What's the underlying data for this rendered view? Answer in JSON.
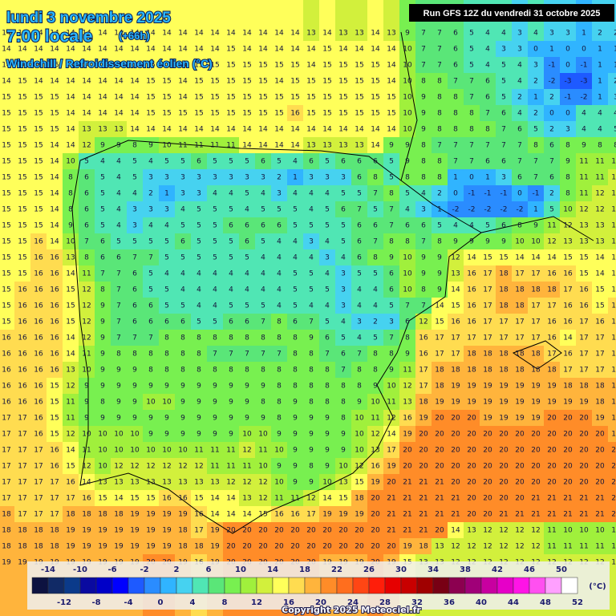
{
  "header": {
    "date": "lundi 3 novembre 2025",
    "time": "7:00 locale",
    "offset": "(+66h)",
    "subtitle": "Windchill / Refroidissement éolien (°C)",
    "run_info": "Run GFS 12Z du vendredi 31 octobre 2025"
  },
  "grid": {
    "rows": [
      [
        14,
        14,
        14,
        14,
        14,
        14,
        14,
        14,
        14,
        14,
        14,
        14,
        14,
        14,
        14,
        14,
        14,
        14,
        14,
        13,
        14,
        13,
        13,
        14,
        13,
        9,
        7,
        7,
        6,
        5,
        4,
        4,
        3,
        4,
        3,
        3,
        1,
        2,
        2
      ],
      [
        14,
        14,
        14,
        14,
        14,
        14,
        14,
        14,
        14,
        14,
        14,
        14,
        14,
        14,
        15,
        14,
        14,
        14,
        14,
        14,
        15,
        14,
        14,
        14,
        14,
        10,
        7,
        7,
        6,
        5,
        4,
        3,
        3,
        0,
        1,
        0,
        0,
        1,
        1
      ],
      [
        14,
        14,
        14,
        15,
        14,
        14,
        14,
        15,
        14,
        15,
        15,
        14,
        15,
        15,
        15,
        15,
        15,
        15,
        15,
        14,
        15,
        15,
        15,
        15,
        14,
        10,
        7,
        7,
        6,
        5,
        4,
        5,
        4,
        3,
        -1,
        0,
        -1,
        1,
        1
      ],
      [
        14,
        15,
        14,
        14,
        14,
        14,
        14,
        14,
        14,
        15,
        15,
        14,
        15,
        15,
        15,
        15,
        15,
        14,
        15,
        15,
        15,
        15,
        15,
        15,
        14,
        10,
        8,
        8,
        7,
        7,
        6,
        5,
        4,
        2,
        -2,
        -3,
        -3,
        1,
        2
      ],
      [
        15,
        15,
        15,
        15,
        14,
        14,
        14,
        14,
        14,
        15,
        15,
        14,
        15,
        15,
        15,
        15,
        15,
        15,
        15,
        15,
        15,
        15,
        15,
        15,
        15,
        10,
        9,
        8,
        8,
        7,
        6,
        5,
        2,
        1,
        2,
        -1,
        -2,
        1,
        3
      ],
      [
        15,
        15,
        15,
        15,
        14,
        14,
        14,
        14,
        14,
        15,
        15,
        15,
        15,
        15,
        15,
        15,
        15,
        15,
        16,
        15,
        15,
        15,
        15,
        15,
        15,
        10,
        9,
        8,
        8,
        8,
        7,
        6,
        4,
        2,
        0,
        0,
        4,
        4,
        4
      ],
      [
        15,
        15,
        15,
        15,
        14,
        13,
        13,
        13,
        14,
        14,
        14,
        14,
        14,
        14,
        14,
        14,
        14,
        14,
        14,
        14,
        14,
        14,
        14,
        14,
        14,
        10,
        9,
        8,
        8,
        8,
        8,
        7,
        6,
        5,
        2,
        3,
        4,
        4,
        5
      ],
      [
        15,
        15,
        15,
        14,
        14,
        12,
        9,
        9,
        8,
        9,
        10,
        11,
        11,
        11,
        11,
        14,
        14,
        14,
        14,
        13,
        13,
        13,
        13,
        14,
        9,
        9,
        8,
        7,
        7,
        7,
        7,
        7,
        7,
        8,
        6,
        8,
        9,
        8,
        8
      ],
      [
        15,
        15,
        15,
        14,
        10,
        5,
        4,
        4,
        5,
        4,
        5,
        5,
        6,
        5,
        5,
        5,
        6,
        5,
        4,
        6,
        5,
        6,
        6,
        6,
        5,
        9,
        8,
        8,
        7,
        7,
        6,
        6,
        7,
        7,
        7,
        9,
        11,
        11,
        11
      ],
      [
        15,
        15,
        15,
        14,
        8,
        6,
        5,
        4,
        5,
        3,
        3,
        3,
        3,
        3,
        3,
        3,
        3,
        2,
        1,
        3,
        3,
        3,
        6,
        8,
        5,
        8,
        8,
        8,
        1,
        0,
        1,
        3,
        6,
        7,
        6,
        8,
        11,
        11,
        12
      ],
      [
        15,
        15,
        15,
        14,
        8,
        6,
        5,
        4,
        4,
        2,
        1,
        3,
        3,
        4,
        4,
        5,
        4,
        3,
        4,
        4,
        4,
        5,
        5,
        7,
        8,
        5,
        4,
        2,
        0,
        -1,
        -1,
        -1,
        0,
        -1,
        2,
        8,
        11,
        12,
        12
      ],
      [
        15,
        15,
        15,
        14,
        8,
        6,
        5,
        4,
        3,
        3,
        3,
        4,
        5,
        5,
        5,
        4,
        5,
        5,
        5,
        4,
        5,
        6,
        7,
        5,
        7,
        4,
        3,
        1,
        -2,
        -2,
        -2,
        -2,
        -2,
        1,
        5,
        10,
        12,
        12,
        13
      ],
      [
        15,
        15,
        15,
        14,
        9,
        6,
        5,
        4,
        3,
        4,
        4,
        5,
        5,
        5,
        6,
        6,
        6,
        6,
        5,
        5,
        5,
        5,
        6,
        6,
        7,
        6,
        6,
        5,
        4,
        4,
        5,
        6,
        8,
        9,
        11,
        12,
        13,
        13,
        13
      ],
      [
        15,
        15,
        16,
        14,
        10,
        7,
        6,
        5,
        5,
        5,
        5,
        6,
        5,
        5,
        5,
        6,
        5,
        4,
        4,
        3,
        4,
        5,
        6,
        7,
        8,
        8,
        7,
        8,
        9,
        9,
        9,
        9,
        10,
        10,
        12,
        13,
        13,
        13,
        13
      ],
      [
        15,
        15,
        16,
        16,
        13,
        8,
        6,
        6,
        7,
        7,
        5,
        5,
        5,
        5,
        5,
        5,
        4,
        4,
        4,
        4,
        3,
        4,
        6,
        8,
        9,
        10,
        9,
        9,
        12,
        14,
        15,
        15,
        14,
        14,
        14,
        15,
        15,
        14,
        14
      ],
      [
        15,
        15,
        16,
        16,
        14,
        11,
        7,
        7,
        6,
        5,
        4,
        4,
        4,
        4,
        4,
        4,
        4,
        4,
        5,
        5,
        4,
        3,
        5,
        5,
        6,
        10,
        9,
        9,
        13,
        16,
        17,
        18,
        17,
        17,
        16,
        16,
        15,
        14,
        14
      ],
      [
        15,
        16,
        16,
        16,
        15,
        12,
        8,
        7,
        6,
        5,
        5,
        4,
        4,
        4,
        4,
        4,
        4,
        4,
        5,
        5,
        5,
        3,
        4,
        4,
        6,
        10,
        8,
        9,
        14,
        16,
        17,
        18,
        18,
        18,
        18,
        17,
        16,
        15,
        15
      ],
      [
        15,
        16,
        16,
        16,
        15,
        12,
        9,
        7,
        6,
        6,
        5,
        5,
        4,
        4,
        5,
        5,
        5,
        4,
        5,
        4,
        4,
        3,
        4,
        4,
        5,
        7,
        7,
        14,
        15,
        16,
        17,
        18,
        18,
        17,
        17,
        16,
        16,
        15,
        16
      ],
      [
        15,
        16,
        16,
        16,
        15,
        12,
        9,
        7,
        6,
        6,
        6,
        6,
        5,
        5,
        6,
        6,
        7,
        8,
        6,
        7,
        5,
        4,
        3,
        2,
        3,
        6,
        12,
        15,
        16,
        16,
        17,
        17,
        17,
        17,
        16,
        16,
        17,
        16,
        16
      ],
      [
        16,
        16,
        16,
        16,
        14,
        12,
        9,
        7,
        7,
        7,
        8,
        8,
        8,
        8,
        8,
        8,
        8,
        8,
        8,
        9,
        6,
        5,
        4,
        5,
        7,
        8,
        16,
        17,
        17,
        17,
        17,
        17,
        17,
        17,
        16,
        14,
        17,
        17,
        17
      ],
      [
        16,
        16,
        16,
        16,
        14,
        11,
        9,
        8,
        8,
        8,
        8,
        8,
        8,
        7,
        7,
        7,
        7,
        7,
        8,
        8,
        7,
        6,
        7,
        8,
        8,
        9,
        16,
        17,
        17,
        18,
        18,
        18,
        18,
        18,
        17,
        16,
        17,
        17,
        17
      ],
      [
        16,
        16,
        16,
        16,
        13,
        10,
        9,
        9,
        9,
        8,
        8,
        8,
        8,
        8,
        8,
        8,
        8,
        8,
        8,
        8,
        8,
        7,
        8,
        8,
        9,
        11,
        17,
        18,
        18,
        18,
        18,
        18,
        18,
        18,
        18,
        17,
        17,
        17,
        17
      ],
      [
        16,
        16,
        16,
        15,
        12,
        9,
        9,
        9,
        9,
        9,
        9,
        9,
        9,
        9,
        9,
        9,
        9,
        8,
        8,
        8,
        8,
        8,
        8,
        9,
        10,
        12,
        17,
        18,
        19,
        19,
        19,
        19,
        19,
        19,
        19,
        18,
        18,
        18,
        18
      ],
      [
        16,
        16,
        16,
        15,
        11,
        9,
        8,
        9,
        9,
        10,
        10,
        9,
        9,
        9,
        9,
        9,
        8,
        8,
        9,
        8,
        8,
        8,
        9,
        10,
        11,
        13,
        18,
        19,
        19,
        19,
        19,
        19,
        19,
        19,
        19,
        19,
        19,
        18,
        18
      ],
      [
        17,
        17,
        16,
        15,
        11,
        9,
        9,
        9,
        9,
        9,
        9,
        9,
        9,
        9,
        9,
        9,
        9,
        8,
        9,
        9,
        9,
        8,
        10,
        11,
        12,
        16,
        19,
        20,
        20,
        20,
        19,
        19,
        19,
        19,
        20,
        20,
        20,
        19,
        19
      ],
      [
        17,
        17,
        16,
        15,
        12,
        10,
        10,
        10,
        10,
        9,
        9,
        9,
        9,
        9,
        9,
        10,
        10,
        9,
        9,
        9,
        9,
        9,
        10,
        12,
        14,
        19,
        20,
        20,
        20,
        20,
        20,
        20,
        20,
        20,
        20,
        20,
        20,
        20,
        19
      ],
      [
        17,
        17,
        17,
        16,
        14,
        11,
        10,
        10,
        10,
        10,
        10,
        10,
        11,
        11,
        11,
        12,
        11,
        10,
        9,
        9,
        9,
        9,
        10,
        13,
        17,
        20,
        20,
        20,
        20,
        20,
        20,
        20,
        20,
        20,
        20,
        20,
        20,
        20,
        20
      ],
      [
        17,
        17,
        17,
        16,
        15,
        12,
        10,
        12,
        12,
        12,
        12,
        12,
        12,
        11,
        11,
        11,
        10,
        9,
        9,
        8,
        9,
        10,
        12,
        16,
        19,
        20,
        20,
        20,
        20,
        20,
        20,
        20,
        20,
        20,
        20,
        20,
        20,
        20,
        20
      ],
      [
        17,
        17,
        17,
        17,
        16,
        14,
        13,
        13,
        13,
        13,
        13,
        13,
        13,
        13,
        12,
        12,
        12,
        10,
        9,
        9,
        10,
        13,
        15,
        19,
        20,
        21,
        21,
        21,
        20,
        20,
        20,
        20,
        20,
        20,
        20,
        20,
        20,
        20,
        20
      ],
      [
        17,
        17,
        17,
        17,
        17,
        16,
        15,
        14,
        15,
        15,
        16,
        16,
        15,
        14,
        14,
        13,
        12,
        11,
        11,
        12,
        14,
        15,
        18,
        20,
        21,
        21,
        21,
        21,
        21,
        20,
        20,
        20,
        20,
        21,
        21,
        21,
        21,
        21,
        21
      ],
      [
        18,
        17,
        17,
        17,
        18,
        18,
        18,
        18,
        19,
        19,
        19,
        19,
        16,
        14,
        14,
        14,
        15,
        16,
        16,
        17,
        19,
        19,
        19,
        20,
        21,
        21,
        21,
        21,
        21,
        20,
        20,
        21,
        21,
        21,
        21,
        21,
        21,
        21,
        21
      ],
      [
        18,
        18,
        18,
        18,
        19,
        19,
        19,
        19,
        19,
        19,
        19,
        18,
        17,
        19,
        20,
        20,
        20,
        20,
        20,
        20,
        20,
        20,
        20,
        20,
        21,
        21,
        21,
        20,
        14,
        13,
        12,
        12,
        12,
        12,
        11,
        10,
        10,
        10,
        10
      ],
      [
        18,
        18,
        18,
        18,
        19,
        19,
        19,
        19,
        19,
        19,
        19,
        18,
        18,
        19,
        20,
        20,
        20,
        20,
        20,
        20,
        20,
        20,
        20,
        20,
        20,
        19,
        18,
        13,
        12,
        12,
        12,
        12,
        12,
        12,
        11,
        11,
        11,
        11,
        11
      ],
      [
        19,
        19,
        19,
        19,
        19,
        19,
        19,
        19,
        19,
        20,
        20,
        19,
        16,
        19,
        20,
        20,
        20,
        20,
        20,
        20,
        19,
        19,
        19,
        20,
        19,
        15,
        13,
        13,
        12,
        12,
        12,
        12,
        12,
        12,
        12,
        12,
        12,
        12,
        12
      ]
    ]
  },
  "legend": {
    "top_labels": [
      -14,
      -10,
      -6,
      -2,
      2,
      6,
      10,
      14,
      18,
      22,
      26,
      30,
      34,
      38,
      42,
      46,
      50
    ],
    "bottom_labels": [
      -12,
      -8,
      -4,
      0,
      4,
      8,
      12,
      16,
      20,
      24,
      28,
      32,
      36,
      40,
      44,
      48,
      52
    ],
    "unit": "(°C)",
    "colors": [
      "#0d1240",
      "#112a66",
      "#0b3a8a",
      "#0a0aa0",
      "#0000c8",
      "#0000ff",
      "#1e5aff",
      "#2a8cff",
      "#30b4ff",
      "#46d2f0",
      "#50e6b4",
      "#5ae678",
      "#78f050",
      "#a0f03c",
      "#d2f03c",
      "#ffff5a",
      "#ffdc50",
      "#ffb43c",
      "#ff8c28",
      "#ff6e1e",
      "#ff4614",
      "#ff1e0a",
      "#e60000",
      "#c80000",
      "#a00000",
      "#780014",
      "#8c0050",
      "#a00078",
      "#c800a0",
      "#e600c8",
      "#ff14e6",
      "#ff50f0",
      "#ffa0ff",
      "#ffffff"
    ]
  },
  "copyright": "Copyright 2025 Meteociel.fr"
}
